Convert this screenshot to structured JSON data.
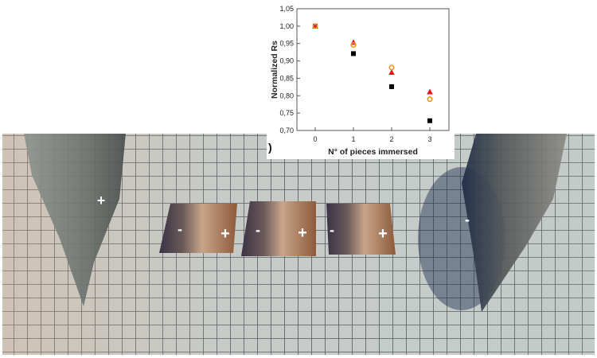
{
  "photo": {
    "electrode_left_label": "+",
    "electrode_right_label": "-",
    "pieces": [
      {
        "minus": "-",
        "plus": "+"
      },
      {
        "minus": "-",
        "plus": "+"
      },
      {
        "minus": "-",
        "plus": "+"
      }
    ]
  },
  "panel_label": ")",
  "chart_data": {
    "type": "scatter",
    "title": "",
    "xlabel": "N° of pieces immersed",
    "ylabel": "Normalized Rs",
    "xlim": [
      -0.5,
      3.3
    ],
    "ylim": [
      0.7,
      1.05
    ],
    "x_ticks": [
      "0",
      "1",
      "2",
      "3"
    ],
    "y_ticks": [
      "0,70",
      "0,75",
      "0,80",
      "0,85",
      "0,90",
      "0,95",
      "1,00",
      "1,05"
    ],
    "x": [
      0,
      1,
      2,
      3
    ],
    "series": [
      {
        "name": "square",
        "marker": "square",
        "color": "#000000",
        "values": [
          1.0,
          0.921,
          0.826,
          0.728
        ]
      },
      {
        "name": "triangle",
        "marker": "triangle",
        "color": "#e8141c",
        "values": [
          1.0,
          0.953,
          0.867,
          0.811
        ]
      },
      {
        "name": "circle",
        "marker": "circle-open",
        "color": "#f7931e",
        "values": [
          1.0,
          0.946,
          0.881,
          0.79
        ]
      }
    ],
    "grid": false,
    "legend": "none"
  }
}
